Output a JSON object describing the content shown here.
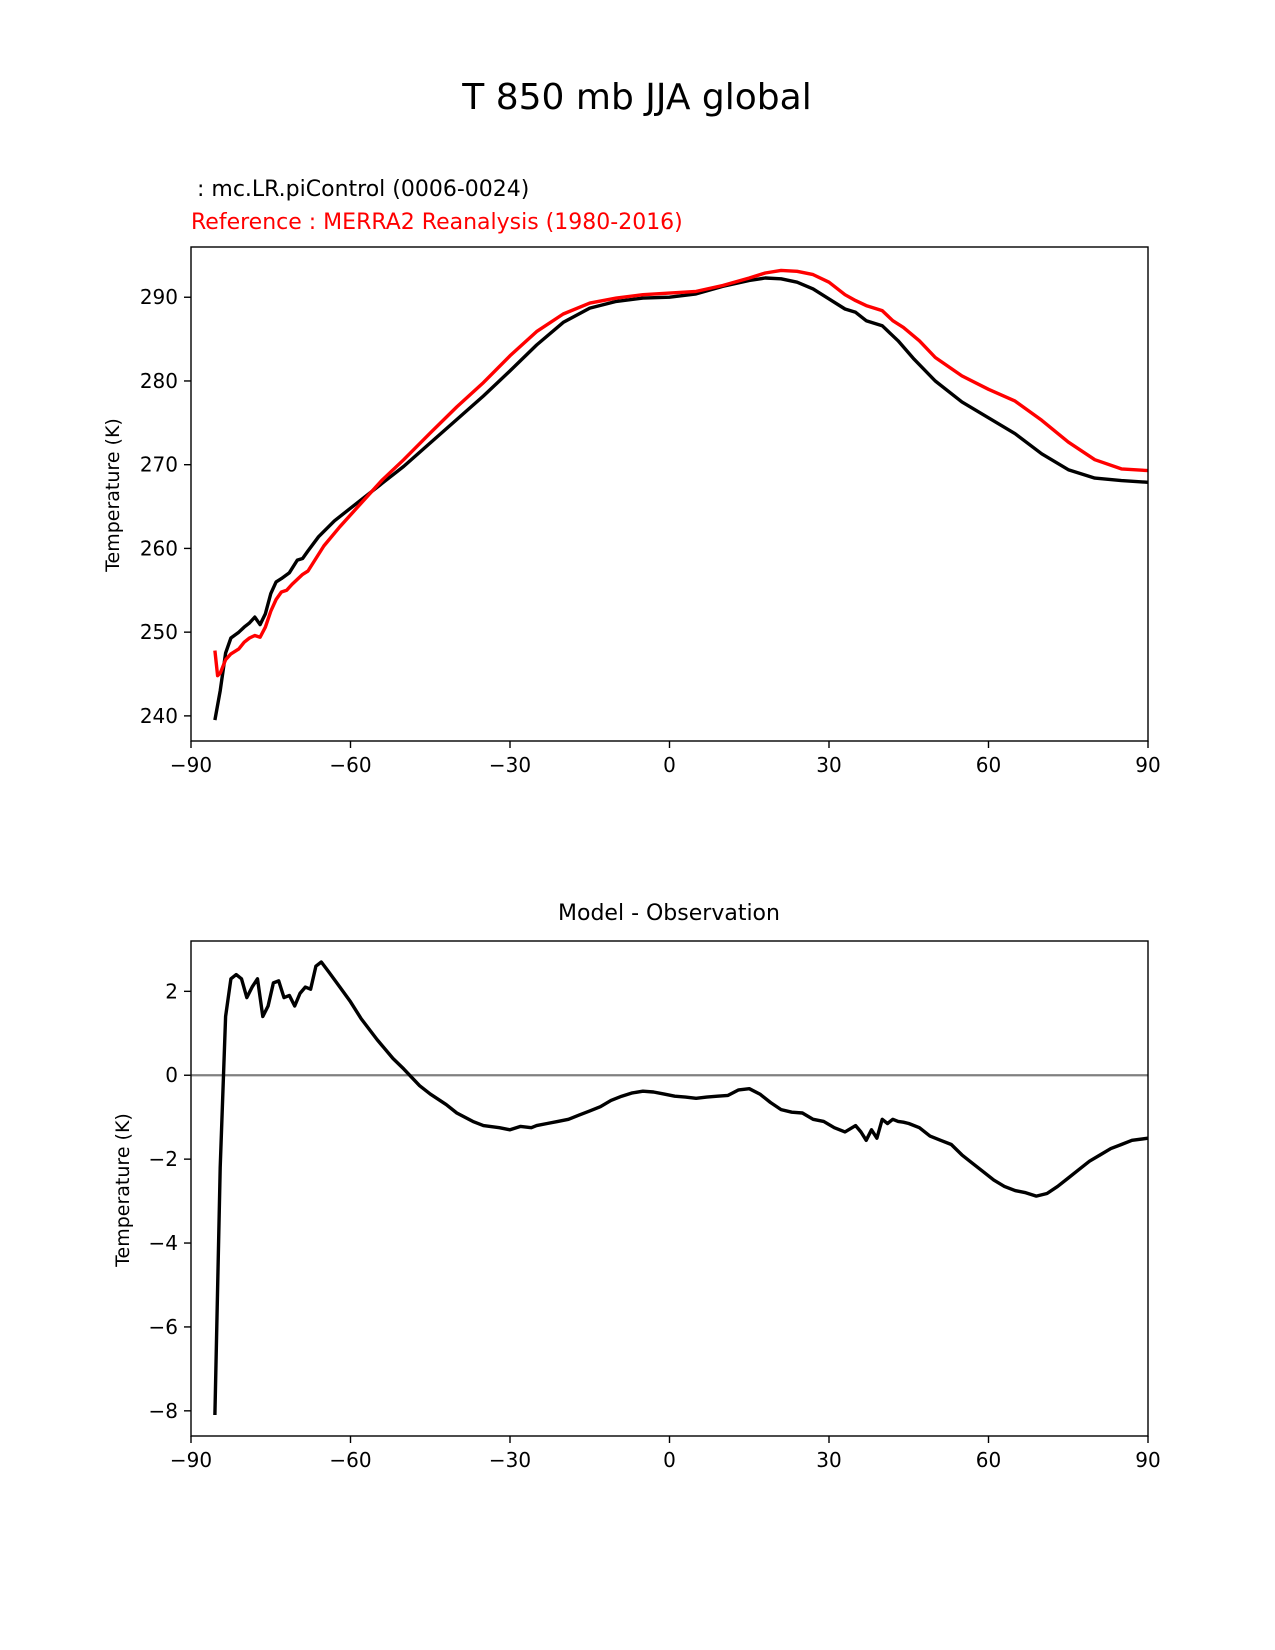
{
  "figure_title": "T 850 mb JJA global",
  "colors": {
    "model": "#000000",
    "reference": "#ff0000",
    "zero_line": "#808080"
  },
  "chart_data": [
    {
      "type": "line",
      "subtitle_model": " : mc.LR.piControl (0006-0024)",
      "subtitle_reference": "Reference : MERRA2 Reanalysis (1980-2016)",
      "xlabel": "",
      "ylabel": "Temperature (K)",
      "xlim": [
        -90,
        90
      ],
      "ylim": [
        237,
        296
      ],
      "xticks": [
        -90,
        -60,
        -30,
        0,
        30,
        60,
        90
      ],
      "xtick_labels": [
        "−90",
        "−60",
        "−30",
        "0",
        "30",
        "60",
        "90"
      ],
      "yticks": [
        240,
        250,
        260,
        270,
        280,
        290
      ],
      "ytick_labels": [
        "240",
        "250",
        "260",
        "270",
        "280",
        "290"
      ],
      "series": [
        {
          "name": "mc.LR.piControl (0006-0024)",
          "color": "#000000",
          "x": [
            -85.5,
            -84.5,
            -83.5,
            -82.5,
            -81,
            -80,
            -79,
            -78,
            -77,
            -76,
            -75,
            -74,
            -73,
            -71.5,
            -70,
            -69,
            -68,
            -66,
            -63,
            -60,
            -57,
            -54,
            -50,
            -45,
            -40,
            -35,
            -30,
            -25,
            -20,
            -15,
            -10,
            -5,
            0,
            5,
            10,
            15,
            18,
            21,
            24,
            27,
            30,
            33,
            35,
            37,
            40,
            43,
            46,
            50,
            55,
            60,
            65,
            70,
            75,
            80,
            85,
            90
          ],
          "y": [
            239.5,
            243,
            247.5,
            249.3,
            250,
            250.6,
            251.1,
            251.8,
            250.9,
            252.2,
            254.6,
            256,
            256.4,
            257.1,
            258.6,
            258.8,
            259.7,
            261.4,
            263.3,
            264.8,
            266.3,
            267.8,
            269.8,
            272.6,
            275.4,
            278.2,
            281.2,
            284.3,
            287,
            288.7,
            289.5,
            289.9,
            290,
            290.4,
            291.3,
            292,
            292.3,
            292.2,
            291.8,
            291,
            289.8,
            288.6,
            288.2,
            287.2,
            286.6,
            284.8,
            282.6,
            280,
            277.5,
            275.6,
            273.7,
            271.3,
            269.4,
            268.4,
            268.1,
            267.9
          ]
        },
        {
          "name": "MERRA2 Reanalysis (1980-2016)",
          "color": "#ff0000",
          "x": [
            -85.5,
            -85,
            -84.5,
            -83.5,
            -82.5,
            -81,
            -80,
            -79,
            -78,
            -77,
            -76,
            -75,
            -74,
            -73,
            -72,
            -71,
            -70,
            -69,
            -68,
            -65,
            -62,
            -58,
            -54,
            -50,
            -45,
            -40,
            -35,
            -30,
            -25,
            -20,
            -15,
            -10,
            -5,
            0,
            5,
            10,
            15,
            18,
            21,
            24,
            27,
            30,
            33,
            35,
            37,
            40,
            42,
            44,
            47,
            50,
            55,
            60,
            65,
            70,
            75,
            80,
            85,
            90
          ],
          "y": [
            247.8,
            244.8,
            245.1,
            246.7,
            247.4,
            248,
            248.8,
            249.3,
            249.6,
            249.4,
            250.6,
            252.5,
            253.9,
            254.8,
            255,
            255.7,
            256.3,
            256.9,
            257.3,
            260.3,
            262.6,
            265.4,
            268.2,
            270.6,
            273.8,
            276.9,
            279.8,
            283,
            285.9,
            288,
            289.3,
            289.9,
            290.3,
            290.5,
            290.7,
            291.4,
            292.3,
            292.9,
            293.2,
            293.1,
            292.7,
            291.8,
            290.3,
            289.6,
            289,
            288.4,
            287.2,
            286.4,
            284.8,
            282.8,
            280.6,
            279,
            277.6,
            275.3,
            272.7,
            270.6,
            269.5,
            269.3
          ]
        }
      ]
    },
    {
      "type": "line",
      "title": "Model - Observation",
      "xlabel": "",
      "ylabel": "Temperature (K)",
      "xlim": [
        -90,
        90
      ],
      "ylim": [
        -8.6,
        3.2
      ],
      "xticks": [
        -90,
        -60,
        -30,
        0,
        30,
        60,
        90
      ],
      "xtick_labels": [
        "−90",
        "−60",
        "−30",
        "0",
        "30",
        "60",
        "90"
      ],
      "yticks": [
        -8,
        -6,
        -4,
        -2,
        0,
        2
      ],
      "ytick_labels": [
        "−8",
        "−6",
        "−4",
        "−2",
        "0",
        "2"
      ],
      "zero_line": 0,
      "series": [
        {
          "name": "Model - Observation",
          "color": "#000000",
          "x": [
            -85.5,
            -84.5,
            -83.5,
            -82.5,
            -81.5,
            -80.5,
            -79.5,
            -78.5,
            -77.5,
            -76.5,
            -75.5,
            -74.5,
            -73.5,
            -72.5,
            -71.5,
            -70.5,
            -69.5,
            -68.5,
            -67.5,
            -66.5,
            -65.5,
            -64,
            -62,
            -60,
            -58,
            -55,
            -52,
            -50,
            -47,
            -45,
            -42,
            -40,
            -37,
            -35,
            -32,
            -30,
            -28,
            -26,
            -25,
            -23,
            -21,
            -19,
            -17,
            -15,
            -13,
            -11,
            -9,
            -7,
            -5,
            -3,
            -1,
            1,
            3,
            5,
            7,
            9,
            11,
            13,
            15,
            17,
            19,
            21,
            23,
            25,
            27,
            29,
            31,
            33,
            35,
            36,
            37,
            38,
            39,
            40,
            41,
            42,
            43,
            44,
            45,
            47,
            49,
            51,
            53,
            55,
            57,
            59,
            61,
            63,
            65,
            67,
            69,
            71,
            73,
            75,
            77,
            79,
            81,
            83,
            85,
            87,
            90
          ],
          "y": [
            -8.1,
            -2.2,
            1.4,
            2.3,
            2.4,
            2.3,
            1.85,
            2.1,
            2.3,
            1.4,
            1.65,
            2.2,
            2.25,
            1.85,
            1.9,
            1.65,
            1.95,
            2.1,
            2.05,
            2.6,
            2.7,
            2.45,
            2.1,
            1.75,
            1.35,
            0.85,
            0.4,
            0.15,
            -0.25,
            -0.45,
            -0.7,
            -0.9,
            -1.1,
            -1.2,
            -1.25,
            -1.3,
            -1.22,
            -1.25,
            -1.2,
            -1.15,
            -1.1,
            -1.05,
            -0.95,
            -0.85,
            -0.75,
            -0.6,
            -0.5,
            -0.42,
            -0.38,
            -0.4,
            -0.45,
            -0.5,
            -0.52,
            -0.55,
            -0.52,
            -0.5,
            -0.48,
            -0.35,
            -0.32,
            -0.45,
            -0.65,
            -0.82,
            -0.88,
            -0.9,
            -1.05,
            -1.1,
            -1.25,
            -1.35,
            -1.2,
            -1.35,
            -1.55,
            -1.3,
            -1.5,
            -1.05,
            -1.15,
            -1.05,
            -1.1,
            -1.12,
            -1.15,
            -1.25,
            -1.45,
            -1.55,
            -1.65,
            -1.9,
            -2.1,
            -2.3,
            -2.5,
            -2.65,
            -2.75,
            -2.8,
            -2.88,
            -2.82,
            -2.65,
            -2.45,
            -2.25,
            -2.05,
            -1.9,
            -1.75,
            -1.65,
            -1.55,
            -1.5
          ]
        }
      ]
    }
  ]
}
